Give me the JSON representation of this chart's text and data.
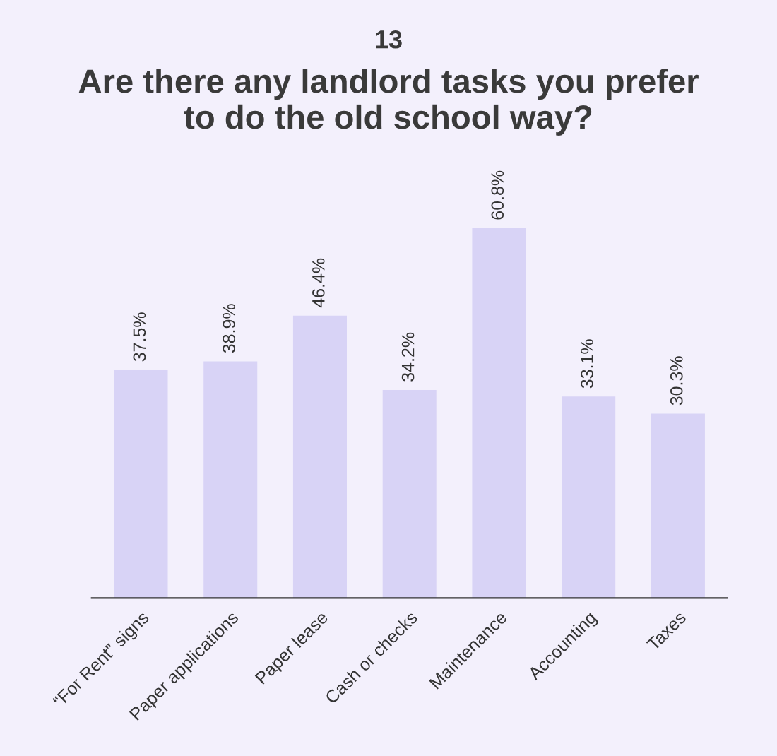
{
  "chart_data": {
    "type": "bar",
    "subtitle": "13",
    "title": "Are there any landlord tasks you prefer\nto do the old school way?",
    "categories": [
      "“For Rent” signs",
      "Paper applications",
      "Paper lease",
      "Cash or checks",
      "Maintenance",
      "Accounting",
      "Taxes"
    ],
    "values": [
      37.5,
      38.9,
      46.4,
      34.2,
      60.8,
      33.1,
      30.3
    ],
    "value_labels": [
      "37.5%",
      "38.9%",
      "46.4%",
      "34.2%",
      "60.8%",
      "33.1%",
      "30.3%"
    ],
    "color": "#d8d3f6",
    "tick_labels": "x",
    "grid": false,
    "legend": false
  }
}
